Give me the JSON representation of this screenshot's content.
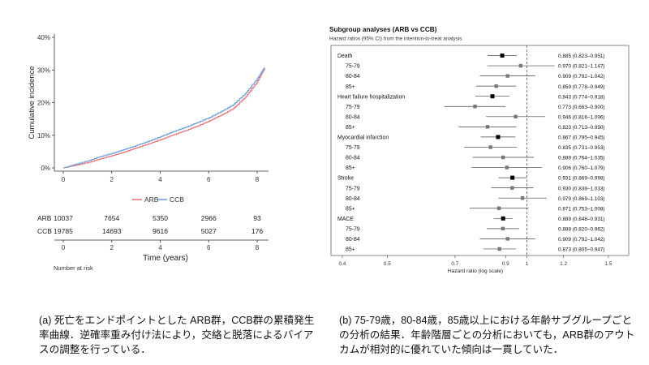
{
  "chart_data": [
    {
      "type": "line",
      "ylabel": "Cumulative incidence",
      "xlabel": "Time (years)",
      "x_ticks": [
        "0",
        "2",
        "4",
        "6",
        "8"
      ],
      "xlim": [
        0,
        8.5
      ],
      "y_ticks": [
        "0%",
        "10%",
        "20%",
        "30%",
        "40%"
      ],
      "ylim": [
        0,
        0.4
      ],
      "legend": "bottom",
      "series": [
        {
          "name": "ARB",
          "color": "#e8737b",
          "x": [
            0,
            0.5,
            1,
            1.5,
            2,
            2.5,
            3,
            3.5,
            4,
            4.5,
            5,
            5.5,
            6,
            6.5,
            7,
            7.5,
            8,
            8.3
          ],
          "y": [
            0,
            0.008,
            0.016,
            0.027,
            0.037,
            0.048,
            0.061,
            0.073,
            0.086,
            0.1,
            0.113,
            0.127,
            0.143,
            0.161,
            0.181,
            0.216,
            0.263,
            0.305
          ]
        },
        {
          "name": "CCB",
          "color": "#6a9ed6",
          "x": [
            0,
            0.5,
            1,
            1.5,
            2,
            2.5,
            3,
            3.5,
            4,
            4.5,
            5,
            5.5,
            6,
            6.5,
            7,
            7.5,
            8,
            8.3
          ],
          "y": [
            0,
            0.011,
            0.021,
            0.034,
            0.044,
            0.056,
            0.068,
            0.081,
            0.095,
            0.11,
            0.123,
            0.138,
            0.153,
            0.172,
            0.193,
            0.227,
            0.273,
            0.308
          ]
        }
      ],
      "risk_table": {
        "label": "Number at risk",
        "rows": [
          {
            "name": "ARB",
            "values": [
              "10037",
              "7654",
              "5350",
              "2966",
              "93"
            ]
          },
          {
            "name": "CCB",
            "values": [
              "19785",
              "14693",
              "9616",
              "5027",
              "176"
            ]
          }
        ]
      }
    },
    {
      "type": "forest",
      "title": "Subgroup analyses (ARB vs CCB)",
      "subtitle": "Hazard ratios (95% CI) from the intention-to-treat analysis.",
      "xlabel": "Hazard ratio (log scale)",
      "x_ticks": [
        "0.4",
        "0.5",
        "0.7",
        "0.9",
        "1",
        "1.2",
        "1.5"
      ],
      "x_tick_values": [
        0.4,
        0.5,
        0.7,
        0.9,
        1,
        1.2,
        1.5
      ],
      "reference_line": 1,
      "rows": [
        {
          "label": "Death",
          "main": true,
          "hr": 0.885,
          "lo": 0.823,
          "hi": 0.951,
          "text": "0.885 (0.823–0.951)"
        },
        {
          "label": "75-79",
          "main": false,
          "hr": 0.97,
          "lo": 0.821,
          "hi": 1.147,
          "text": "0.970 (0.821–1.147)"
        },
        {
          "label": "80-84",
          "main": false,
          "hr": 0.909,
          "lo": 0.792,
          "hi": 1.042,
          "text": "0.909 (0.792–1.042)"
        },
        {
          "label": "85+",
          "main": false,
          "hr": 0.859,
          "lo": 0.778,
          "hi": 0.949,
          "text": "0.859 (0.778–0.949)"
        },
        {
          "label": "Heart failure hospitalization",
          "main": true,
          "hr": 0.843,
          "lo": 0.774,
          "hi": 0.918,
          "text": "0.843 (0.774–0.918)"
        },
        {
          "label": "75-79",
          "main": false,
          "hr": 0.773,
          "lo": 0.663,
          "hi": 0.9,
          "text": "0.773 (0.663–0.900)"
        },
        {
          "label": "80-84",
          "main": false,
          "hr": 0.946,
          "lo": 0.816,
          "hi": 1.096,
          "text": "0.946 (0.816–1.096)"
        },
        {
          "label": "85+",
          "main": false,
          "hr": 0.823,
          "lo": 0.713,
          "hi": 0.95,
          "text": "0.823 (0.713–0.950)"
        },
        {
          "label": "Myocardial infarction",
          "main": true,
          "hr": 0.867,
          "lo": 0.795,
          "hi": 0.945,
          "text": "0.867 (0.795–0.945)"
        },
        {
          "label": "75-79",
          "main": false,
          "hr": 0.835,
          "lo": 0.731,
          "hi": 0.953,
          "text": "0.835 (0.731–0.953)"
        },
        {
          "label": "80-84",
          "main": false,
          "hr": 0.889,
          "lo": 0.764,
          "hi": 1.035,
          "text": "0.889 (0.764–1.035)"
        },
        {
          "label": "85+",
          "main": false,
          "hr": 0.906,
          "lo": 0.76,
          "hi": 1.079,
          "text": "0.906 (0.760–1.079)"
        },
        {
          "label": "Stroke",
          "main": true,
          "hr": 0.931,
          "lo": 0.869,
          "hi": 0.998,
          "text": "0.931 (0.869–0.998)"
        },
        {
          "label": "75-79",
          "main": false,
          "hr": 0.93,
          "lo": 0.838,
          "hi": 1.033,
          "text": "0.930 (0.838–1.033)"
        },
        {
          "label": "80-84",
          "main": false,
          "hr": 0.979,
          "lo": 0.869,
          "hi": 1.103,
          "text": "0.979 (0.869–1.103)"
        },
        {
          "label": "85+",
          "main": false,
          "hr": 0.871,
          "lo": 0.753,
          "hi": 1.008,
          "text": "0.871 (0.753–1.008)"
        },
        {
          "label": "MACE",
          "main": true,
          "hr": 0.889,
          "lo": 0.848,
          "hi": 0.931,
          "text": "0.889 (0.848–0.931)"
        },
        {
          "label": "75-79",
          "main": false,
          "hr": 0.888,
          "lo": 0.82,
          "hi": 0.962,
          "text": "0.888 (0.820–0.962)"
        },
        {
          "label": "80-84",
          "main": false,
          "hr": 0.909,
          "lo": 0.792,
          "hi": 1.042,
          "text": "0.909 (0.792–1.042)"
        },
        {
          "label": "85+",
          "main": false,
          "hr": 0.873,
          "lo": 0.805,
          "hi": 0.947,
          "text": "0.873 (0.805–0.947)"
        }
      ]
    }
  ],
  "captions": {
    "a": "(a) 死亡をエンドポイントとした ARB群，CCB群の累積発生率曲線．逆確率重み付け法により，交絡と脱落によるバイアスの調整を行っている．",
    "b": "(b) 75-79歳，80-84歳，85歳以上における年齢サブグループごとの分析の結果．年齢階層ごとの分析においても，ARB群のアウトカムが相対的に優れていた傾向は一貫していた．"
  }
}
